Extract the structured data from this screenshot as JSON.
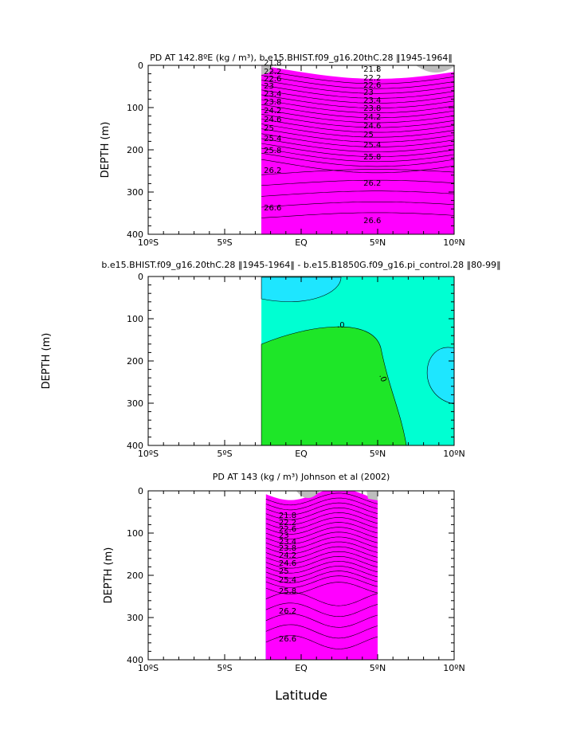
{
  "figure": {
    "xlabel": "Latitude"
  },
  "colors": {
    "land": "#bdbdbd",
    "density_scale": [
      "#ff00ff",
      "#e600ff",
      "#b300ff",
      "#8000ff",
      "#4d00ff",
      "#0000ff",
      "#003cff",
      "#0078ff",
      "#00b4ff",
      "#00dcff",
      "#00ffe6",
      "#00ffb4",
      "#00ff64",
      "#32ff00",
      "#96ff00",
      "#d2ff00",
      "#ffff00",
      "#ffdc00",
      "#ffb400",
      "#ff8c00",
      "#ff6400",
      "#ff3c00",
      "#ff0000",
      "#e60000",
      "#c80000"
    ],
    "difference": {
      "negative": "#1ee6ff",
      "near_zero": "#00ffd2",
      "positive": "#1ee628"
    }
  },
  "chart_data": [
    {
      "type": "heatmap",
      "title": "PD AT 142.8ºE (kg / m³), b.e15.BHIST.f09_g16.20thC.28 ‖1945-1964‖",
      "ylabel": "DEPTH (m)",
      "xlim": [
        -10,
        10
      ],
      "ylim": [
        0,
        400
      ],
      "x_ticks": [
        "10ºS",
        "5ºS",
        "EQ",
        "5ºN",
        "10ºN"
      ],
      "y_ticks": [
        "0",
        "100",
        "200",
        "300",
        "400"
      ],
      "data_lat_range": [
        -2.6,
        10
      ],
      "contour_labels_left": [
        "21.8",
        "22.2",
        "22.6",
        "23",
        "23.4",
        "23.8",
        "24.2",
        "24.6",
        "25",
        "25.4",
        "25.8",
        "26.2",
        "26.6"
      ],
      "contour_labels_right": [
        "21.8",
        "22.2",
        "22.6",
        "23",
        "23.4",
        "23.8",
        "24.2",
        "24.6",
        "25",
        "25.4",
        "25.8",
        "26.2",
        "26.6"
      ],
      "density_range": [
        21.4,
        26.9
      ]
    },
    {
      "type": "heatmap",
      "title": "b.e15.BHIST.f09_g16.20thC.28 ‖1945-1964‖ - b.e15.B1850G.f09_g16.pi_control.28 ‖80-99‖",
      "ylabel": "DEPTH (m)",
      "xlim": [
        -10,
        10
      ],
      "ylim": [
        0,
        400
      ],
      "x_ticks": [
        "10ºS",
        "5ºS",
        "EQ",
        "5ºN",
        "10ºN"
      ],
      "y_ticks": [
        "0",
        "100",
        "200",
        "300",
        "400"
      ],
      "data_lat_range": [
        -2.6,
        10
      ],
      "contour_labels": [
        ".0",
        ".0"
      ]
    },
    {
      "type": "heatmap",
      "title": "PD AT 143 (kg / m³) Johnson et al (2002)",
      "ylabel": "DEPTH (m)",
      "xlim": [
        -10,
        10
      ],
      "ylim": [
        0,
        400
      ],
      "x_ticks": [
        "10ºS",
        "5ºS",
        "EQ",
        "5ºN",
        "10ºN"
      ],
      "y_ticks": [
        "0",
        "100",
        "200",
        "300",
        "400"
      ],
      "data_lat_range": [
        -2.3,
        5
      ],
      "contour_labels": [
        "21.8",
        "22.2",
        "22.6",
        "23",
        "23.4",
        "23.8",
        "24.2",
        "24.6",
        "25",
        "25.4",
        "25.8",
        "26.2",
        "26.6"
      ],
      "density_range": [
        21.4,
        26.9
      ]
    }
  ]
}
